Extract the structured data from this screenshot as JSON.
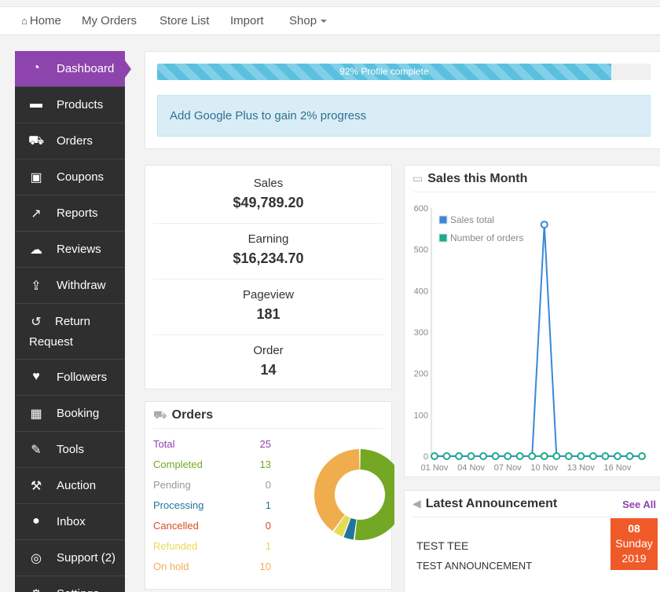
{
  "topnav": {
    "home": "Home",
    "my_orders": "My Orders",
    "store_list": "Store List",
    "import": "Import",
    "shop": "Shop"
  },
  "sidebar": {
    "items": [
      {
        "label": "Dashboard",
        "icon": "dashboard-icon",
        "glyph": "◔"
      },
      {
        "label": "Products",
        "icon": "briefcase-icon",
        "glyph": "▬"
      },
      {
        "label": "Orders",
        "icon": "cart-icon",
        "glyph": "⛟"
      },
      {
        "label": "Coupons",
        "icon": "gift-icon",
        "glyph": "▣"
      },
      {
        "label": "Reports",
        "icon": "line-chart-icon",
        "glyph": "↗"
      },
      {
        "label": "Reviews",
        "icon": "comments-icon",
        "glyph": "☁"
      },
      {
        "label": "Withdraw",
        "icon": "upload-icon",
        "glyph": "⇪"
      },
      {
        "label": "Return",
        "label2": "Request",
        "icon": "undo-icon",
        "glyph": "↺"
      },
      {
        "label": "Followers",
        "icon": "heart-icon",
        "glyph": "♥"
      },
      {
        "label": "Booking",
        "icon": "calendar-icon",
        "glyph": "▦"
      },
      {
        "label": "Tools",
        "icon": "wrench-icon",
        "glyph": "✎"
      },
      {
        "label": "Auction",
        "icon": "gavel-icon",
        "glyph": "⚒"
      },
      {
        "label": "Inbox",
        "icon": "chat-icon",
        "glyph": "●"
      },
      {
        "label": "Support (2)",
        "icon": "life-ring-icon",
        "glyph": "◎"
      },
      {
        "label": "Settings",
        "icon": "gear-icon",
        "glyph": "⚙"
      }
    ]
  },
  "profile": {
    "progress_label": "92% Profile complete",
    "progress_value": 0.92,
    "alert_text": "Add Google Plus to gain 2% progress"
  },
  "stats": [
    {
      "label": "Sales",
      "value": "$49,789.20"
    },
    {
      "label": "Earning",
      "value": "$16,234.70"
    },
    {
      "label": "Pageview",
      "value": "181"
    },
    {
      "label": "Order",
      "value": "14"
    }
  ],
  "orders": {
    "title": "Orders",
    "rows": [
      {
        "label": "Total",
        "value": "25",
        "color": "#8e44ad"
      },
      {
        "label": "Completed",
        "value": "13",
        "color": "#73a724"
      },
      {
        "label": "Pending",
        "value": "0",
        "color": "#999999"
      },
      {
        "label": "Processing",
        "value": "1",
        "color": "#21759b"
      },
      {
        "label": "Cancelled",
        "value": "0",
        "color": "#d54e21"
      },
      {
        "label": "Refunded",
        "value": "1",
        "color": "#e6db55"
      },
      {
        "label": "On hold",
        "value": "10",
        "color": "#f0ad4e"
      }
    ],
    "donut": [
      {
        "name": "Completed",
        "value": 13,
        "color": "#73a724"
      },
      {
        "name": "Processing",
        "value": 1,
        "color": "#21759b"
      },
      {
        "name": "Refunded",
        "value": 1,
        "color": "#e6db55"
      },
      {
        "name": "On hold",
        "value": 10,
        "color": "#f0ad4e"
      }
    ]
  },
  "sales_chart": {
    "title": "Sales this Month"
  },
  "chart_data": {
    "type": "line",
    "title": "",
    "ylim": [
      0,
      600
    ],
    "yticks": [
      0,
      100,
      200,
      300,
      400,
      500,
      600
    ],
    "x": [
      "01 Nov",
      "02 Nov",
      "03 Nov",
      "04 Nov",
      "05 Nov",
      "06 Nov",
      "07 Nov",
      "08 Nov",
      "09 Nov",
      "10 Nov",
      "11 Nov",
      "12 Nov",
      "13 Nov",
      "14 Nov",
      "15 Nov",
      "16 Nov",
      "17 Nov",
      "18 Nov"
    ],
    "xtick_labels": [
      "01 Nov",
      "04 Nov",
      "07 Nov",
      "10 Nov",
      "13 Nov",
      "16 Nov"
    ],
    "series": [
      {
        "name": "Sales total",
        "color": "#3a87d6",
        "values": [
          0,
          0,
          0,
          0,
          0,
          0,
          0,
          0,
          0,
          560,
          0,
          0,
          0,
          0,
          0,
          0,
          0,
          0
        ]
      },
      {
        "name": "Number of orders",
        "color": "#1aab8a",
        "values": [
          0,
          0,
          0,
          0,
          0,
          0,
          0,
          0,
          0,
          0,
          0,
          0,
          0,
          0,
          0,
          0,
          0,
          0
        ]
      }
    ],
    "legend": "top-left"
  },
  "announcement": {
    "title": "Latest Announcement",
    "see_all": "See All",
    "item_title": "TEST TEE",
    "item_body": "TEST ANNOUNCEMENT",
    "day": "08",
    "weekday": "Sunday",
    "year": "2019"
  }
}
